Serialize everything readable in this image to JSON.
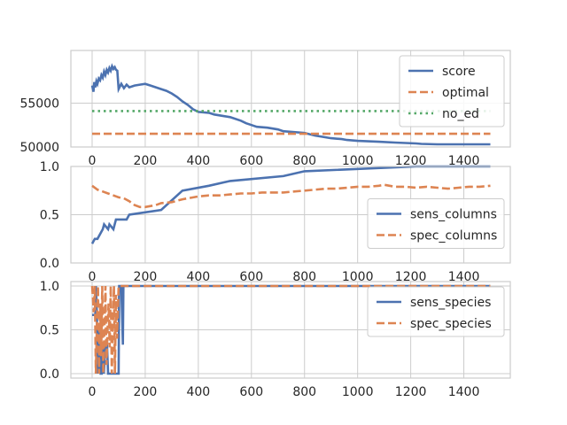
{
  "chart_data": [
    {
      "type": "line",
      "xlim": [
        -80,
        1575
      ],
      "ylim": [
        50000,
        61000
      ],
      "xticks": [
        0,
        200,
        400,
        600,
        800,
        1000,
        1200,
        1400
      ],
      "xtick_labels": [
        "0",
        "200",
        "400",
        "600",
        "800",
        "1000",
        "1200",
        "1400"
      ],
      "yticks": [
        50000,
        55000
      ],
      "ytick_labels": [
        "50000",
        "55000"
      ],
      "grid": true,
      "legend_position": "top-right",
      "series": [
        {
          "name": "score",
          "color": "#4c72b0",
          "style": "solid",
          "x": [
            0,
            5,
            8,
            12,
            16,
            20,
            25,
            30,
            35,
            40,
            45,
            50,
            55,
            60,
            65,
            70,
            75,
            80,
            85,
            90,
            95,
            100,
            110,
            120,
            130,
            140,
            160,
            180,
            200,
            220,
            240,
            260,
            280,
            300,
            320,
            340,
            360,
            380,
            400,
            440,
            460,
            500,
            520,
            560,
            580,
            600,
            620,
            660,
            700,
            720,
            800,
            840,
            900,
            940,
            960,
            1000,
            1080,
            1140,
            1220,
            1240,
            1300,
            1400,
            1500
          ],
          "y": [
            57000,
            56300,
            57400,
            56800,
            57500,
            57200,
            57800,
            57600,
            58200,
            57900,
            58600,
            58200,
            58800,
            58500,
            59000,
            58700,
            59200,
            58900,
            59100,
            58800,
            58700,
            56600,
            57200,
            56700,
            57100,
            56800,
            57000,
            57100,
            57200,
            57000,
            56800,
            56600,
            56400,
            56100,
            55700,
            55200,
            54800,
            54300,
            54000,
            53900,
            53700,
            53500,
            53400,
            53000,
            52700,
            52500,
            52300,
            52200,
            52000,
            51800,
            51600,
            51300,
            51000,
            50900,
            50800,
            50700,
            50600,
            50500,
            50400,
            50350,
            50300,
            50300,
            50300
          ]
        },
        {
          "name": "optimal",
          "color": "#dd8452",
          "style": "dashed",
          "x": [
            0,
            1500
          ],
          "y": [
            51500,
            51500
          ]
        },
        {
          "name": "no_ed",
          "color": "#55a868",
          "style": "dotted",
          "x": [
            0,
            1500
          ],
          "y": [
            54100,
            54100
          ]
        }
      ]
    },
    {
      "type": "line",
      "xlim": [
        -80,
        1575
      ],
      "ylim": [
        0,
        1.0
      ],
      "xticks": [
        0,
        200,
        400,
        600,
        800,
        1000,
        1200,
        1400
      ],
      "xtick_labels": [
        "0",
        "200",
        "400",
        "600",
        "800",
        "1000",
        "1200",
        "1400"
      ],
      "yticks": [
        0,
        0.5,
        1.0
      ],
      "ytick_labels": [
        "0.0",
        "0.5",
        "1.0"
      ],
      "grid": true,
      "legend_position": "center-right",
      "series": [
        {
          "name": "sens_columns",
          "color": "#4c72b0",
          "style": "solid",
          "x": [
            0,
            10,
            20,
            40,
            45,
            60,
            65,
            80,
            90,
            95,
            130,
            140,
            260,
            340,
            440,
            520,
            720,
            800,
            1220,
            1500
          ],
          "y": [
            0.2,
            0.25,
            0.25,
            0.35,
            0.4,
            0.35,
            0.4,
            0.35,
            0.45,
            0.45,
            0.45,
            0.5,
            0.55,
            0.75,
            0.8,
            0.85,
            0.9,
            0.95,
            1.0,
            1.0
          ]
        },
        {
          "name": "spec_columns",
          "color": "#dd8452",
          "style": "dashed",
          "x": [
            0,
            20,
            40,
            60,
            80,
            100,
            120,
            140,
            160,
            180,
            200,
            240,
            260,
            300,
            340,
            360,
            400,
            440,
            480,
            520,
            560,
            600,
            640,
            680,
            720,
            760,
            800,
            840,
            880,
            920,
            960,
            1000,
            1040,
            1080,
            1100,
            1140,
            1180,
            1220,
            1260,
            1300,
            1340,
            1380,
            1420,
            1460,
            1500
          ],
          "y": [
            0.8,
            0.76,
            0.74,
            0.72,
            0.7,
            0.68,
            0.67,
            0.64,
            0.6,
            0.58,
            0.58,
            0.6,
            0.62,
            0.63,
            0.66,
            0.67,
            0.69,
            0.7,
            0.7,
            0.71,
            0.72,
            0.72,
            0.73,
            0.73,
            0.73,
            0.74,
            0.75,
            0.76,
            0.77,
            0.77,
            0.78,
            0.79,
            0.79,
            0.8,
            0.81,
            0.79,
            0.79,
            0.78,
            0.79,
            0.78,
            0.77,
            0.78,
            0.79,
            0.79,
            0.8
          ]
        }
      ]
    },
    {
      "type": "line",
      "xlim": [
        -80,
        1575
      ],
      "ylim": [
        -0.05,
        1.05
      ],
      "xticks": [
        0,
        200,
        400,
        600,
        800,
        1000,
        1200,
        1400
      ],
      "xtick_labels": [
        "0",
        "200",
        "400",
        "600",
        "800",
        "1000",
        "1200",
        "1400"
      ],
      "yticks": [
        0,
        0.5,
        1.0
      ],
      "ytick_labels": [
        "0.0",
        "0.5",
        "1.0"
      ],
      "grid": true,
      "legend_position": "top-right",
      "series": [
        {
          "name": "sens_species",
          "color": "#4c72b0",
          "style": "solid",
          "x": [
            0,
            12,
            14,
            18,
            20,
            24,
            26,
            30,
            32,
            36,
            40,
            44,
            50,
            56,
            60,
            90,
            100,
            102,
            104,
            110,
            116,
            118,
            120,
            200,
            1500
          ],
          "y": [
            0.67,
            0.67,
            1.0,
            0.67,
            0.0,
            0.5,
            0.0,
            0.33,
            0.0,
            0.0,
            0.33,
            0.0,
            0.33,
            0.33,
            0.0,
            0.0,
            0.0,
            1.0,
            1.0,
            1.0,
            0.33,
            1.0,
            1.0,
            1.0,
            1.0
          ]
        },
        {
          "name": "spec_species",
          "color": "#dd8452",
          "style": "dashed",
          "x": [
            0,
            6,
            10,
            14,
            18,
            22,
            26,
            30,
            34,
            38,
            42,
            46,
            50,
            54,
            58,
            62,
            66,
            70,
            74,
            78,
            82,
            86,
            90,
            94,
            100,
            120,
            1500
          ],
          "y": [
            1.0,
            0.7,
            1.0,
            0.0,
            0.6,
            1.0,
            0.0,
            0.8,
            0.2,
            1.0,
            0.0,
            0.5,
            1.0,
            0.1,
            0.5,
            0.8,
            0.3,
            1.0,
            0.0,
            0.5,
            1.0,
            0.0,
            0.9,
            0.4,
            1.0,
            1.0,
            1.0
          ]
        }
      ]
    }
  ]
}
